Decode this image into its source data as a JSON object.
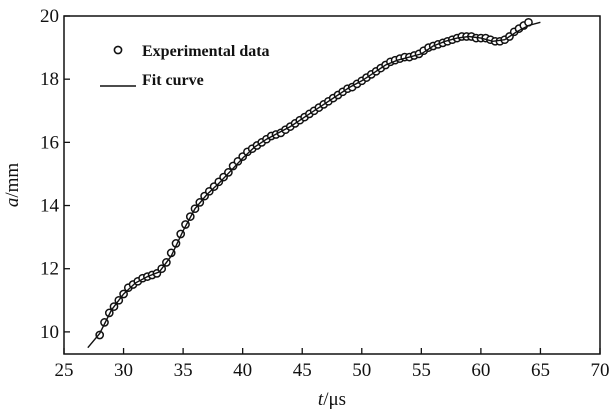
{
  "chart_data": {
    "type": "scatter",
    "title": "",
    "xlabel": "t/μs",
    "xlabel_italic": "t",
    "xlabel_unit": "/μs",
    "ylabel": "a/mm",
    "ylabel_italic": "a",
    "ylabel_unit": "/mm",
    "xlim": [
      25,
      70
    ],
    "ylim": [
      9.3,
      20
    ],
    "xticks": [
      25,
      30,
      35,
      40,
      45,
      50,
      55,
      60,
      65,
      70
    ],
    "yticks": [
      10,
      12,
      14,
      16,
      18,
      20
    ],
    "grid": false,
    "legend_position": "top-left",
    "series": [
      {
        "name": "Experimental data",
        "kind": "markers",
        "x": [
          28.0,
          28.4,
          28.8,
          29.2,
          29.6,
          30.0,
          30.4,
          30.8,
          31.2,
          31.6,
          32.0,
          32.4,
          32.8,
          33.2,
          33.6,
          34.0,
          34.4,
          34.8,
          35.2,
          35.6,
          36.0,
          36.4,
          36.8,
          37.2,
          37.6,
          38.0,
          38.4,
          38.8,
          39.2,
          39.6,
          40.0,
          40.4,
          40.8,
          41.2,
          41.6,
          42.0,
          42.4,
          42.8,
          43.2,
          43.6,
          44.0,
          44.4,
          44.8,
          45.2,
          45.6,
          46.0,
          46.4,
          46.8,
          47.2,
          47.6,
          48.0,
          48.4,
          48.8,
          49.2,
          49.6,
          50.0,
          50.4,
          50.8,
          51.2,
          51.6,
          52.0,
          52.4,
          52.8,
          53.2,
          53.6,
          54.0,
          54.4,
          54.8,
          55.2,
          55.6,
          56.0,
          56.4,
          56.8,
          57.2,
          57.6,
          58.0,
          58.4,
          58.8,
          59.2,
          59.6,
          60.0,
          60.4,
          60.8,
          61.2,
          61.6,
          62.0,
          62.4,
          62.8,
          63.2,
          63.6,
          64.0
        ],
        "y": [
          9.9,
          10.3,
          10.6,
          10.8,
          11.0,
          11.2,
          11.4,
          11.5,
          11.6,
          11.7,
          11.75,
          11.8,
          11.85,
          12.0,
          12.2,
          12.5,
          12.8,
          13.1,
          13.4,
          13.65,
          13.9,
          14.1,
          14.3,
          14.45,
          14.6,
          14.75,
          14.9,
          15.05,
          15.25,
          15.4,
          15.55,
          15.7,
          15.8,
          15.9,
          16.0,
          16.1,
          16.2,
          16.25,
          16.3,
          16.4,
          16.5,
          16.6,
          16.7,
          16.8,
          16.9,
          17.0,
          17.1,
          17.2,
          17.3,
          17.4,
          17.5,
          17.6,
          17.7,
          17.75,
          17.85,
          17.95,
          18.05,
          18.15,
          18.25,
          18.35,
          18.45,
          18.55,
          18.6,
          18.65,
          18.7,
          18.7,
          18.75,
          18.8,
          18.9,
          19.0,
          19.05,
          19.1,
          19.15,
          19.2,
          19.25,
          19.3,
          19.35,
          19.35,
          19.35,
          19.3,
          19.3,
          19.3,
          19.25,
          19.2,
          19.2,
          19.25,
          19.35,
          19.5,
          19.6,
          19.7,
          19.8
        ]
      },
      {
        "name": "Fit curve",
        "kind": "line",
        "x": [
          27.0,
          28.0,
          29.0,
          30.0,
          31.0,
          32.0,
          33.0,
          34.0,
          35.0,
          36.0,
          37.0,
          38.0,
          39.0,
          40.0,
          41.0,
          42.0,
          43.0,
          44.0,
          45.0,
          46.0,
          47.0,
          48.0,
          49.0,
          50.0,
          51.0,
          52.0,
          53.0,
          54.0,
          55.0,
          56.0,
          57.0,
          58.0,
          59.0,
          60.0,
          61.0,
          62.0,
          63.0,
          64.0,
          65.0
        ],
        "y": [
          9.5,
          9.95,
          10.7,
          11.2,
          11.55,
          11.75,
          11.9,
          12.4,
          13.2,
          13.9,
          14.35,
          14.7,
          15.1,
          15.5,
          15.85,
          16.1,
          16.3,
          16.5,
          16.75,
          17.0,
          17.25,
          17.5,
          17.75,
          17.95,
          18.2,
          18.45,
          18.6,
          18.7,
          18.8,
          19.05,
          19.2,
          19.3,
          19.35,
          19.3,
          19.2,
          19.25,
          19.5,
          19.7,
          19.8
        ]
      }
    ]
  }
}
